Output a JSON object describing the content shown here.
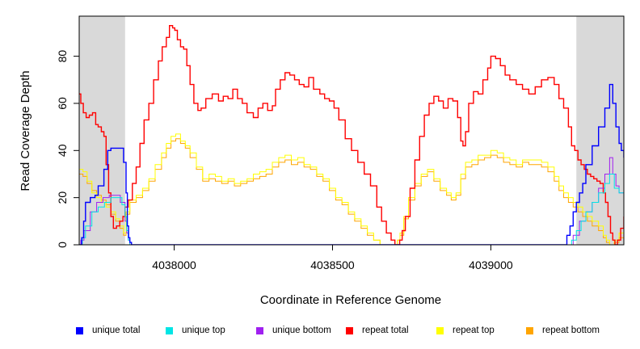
{
  "chart_data": {
    "type": "line",
    "xlabel": "Coordinate in Reference Genome",
    "ylabel": "Read Coverage Depth",
    "xlim": [
      4037700,
      4039420
    ],
    "ylim": [
      0,
      97
    ],
    "x_ticks": [
      4038000,
      4038500,
      4039000
    ],
    "x_tick_labels": [
      "4038000",
      "4038500",
      "4039000"
    ],
    "y_ticks": [
      0,
      20,
      40,
      60,
      80
    ],
    "y_tick_labels": [
      "0",
      "20",
      "40",
      "60",
      "80"
    ],
    "grid": false,
    "legend_position": "bottom",
    "shaded_regions": [
      {
        "x": [
          4037700,
          4037845
        ],
        "color": "#d9d9d9"
      },
      {
        "x": [
          4039270,
          4039420
        ],
        "color": "#d9d9d9"
      }
    ],
    "series": [
      {
        "name": "unique total",
        "color": "#0000ff",
        "x": [
          4037700,
          4037708,
          4037714,
          4037720,
          4037735,
          4037750,
          4037760,
          4037778,
          4037790,
          4037800,
          4037815,
          4037830,
          4037840,
          4037848,
          4037852,
          4037856,
          4037860,
          4037865,
          4037870,
          4039200,
          4039230,
          4039240,
          4039250,
          4039260,
          4039270,
          4039280,
          4039290,
          4039300,
          4039320,
          4039340,
          4039360,
          4039375,
          4039385,
          4039395,
          4039405,
          4039412,
          4039420
        ],
        "y": [
          0,
          3,
          10,
          18,
          20,
          21,
          25,
          32,
          40,
          41,
          41,
          41,
          35,
          22,
          8,
          3,
          1,
          0,
          0,
          0,
          0,
          4,
          8,
          14,
          18,
          22,
          26,
          34,
          42,
          50,
          58,
          68,
          60,
          50,
          43,
          40,
          37
        ]
      },
      {
        "name": "unique top",
        "color": "#00e5e5",
        "x": [
          4037700,
          4037710,
          4037720,
          4037740,
          4037760,
          4037780,
          4037800,
          4037820,
          4037835,
          4037845,
          4037850,
          4037855,
          4037860,
          4037865,
          4037870,
          4039200,
          4039240,
          4039255,
          4039270,
          4039285,
          4039300,
          4039320,
          4039340,
          4039360,
          4039375,
          4039390,
          4039405,
          4039420
        ],
        "y": [
          0,
          3,
          8,
          14,
          16,
          18,
          20,
          20,
          17,
          12,
          6,
          2,
          0,
          0,
          0,
          0,
          0,
          2,
          6,
          10,
          14,
          18,
          22,
          26,
          30,
          24,
          22,
          20
        ]
      },
      {
        "name": "unique bottom",
        "color": "#a020f0",
        "x": [
          4037700,
          4037705,
          4037715,
          4037735,
          4037755,
          4037775,
          4037795,
          4037815,
          4037830,
          4037845,
          4037850,
          4037855,
          4037860,
          4037865,
          4037870,
          4039200,
          4039245,
          4039260,
          4039280,
          4039300,
          4039320,
          4039340,
          4039360,
          4039375,
          4039385,
          4039395,
          4039405,
          4039420
        ],
        "y": [
          0,
          2,
          6,
          14,
          18,
          20,
          21,
          21,
          18,
          10,
          5,
          2,
          0,
          0,
          0,
          0,
          0,
          4,
          10,
          14,
          18,
          24,
          30,
          37,
          30,
          25,
          22,
          20
        ]
      },
      {
        "name": "repeat total",
        "color": "#ff0000",
        "x": [
          4037700,
          4037705,
          4037713,
          4037722,
          4037732,
          4037742,
          4037752,
          4037760,
          4037770,
          4037778,
          4037785,
          4037793,
          4037800,
          4037808,
          4037818,
          4037828,
          4037838,
          4037845,
          4037855,
          4037868,
          4037880,
          4037892,
          4037905,
          4037920,
          4037935,
          4037950,
          4037962,
          4037975,
          4037985,
          4037995,
          4038002,
          4038010,
          4038020,
          4038030,
          4038040,
          4038050,
          4038062,
          4038075,
          4038085,
          4038100,
          4038120,
          4038140,
          4038155,
          4038170,
          4038185,
          4038200,
          4038215,
          4038230,
          4038250,
          4038265,
          4038280,
          4038295,
          4038310,
          4038320,
          4038335,
          4038350,
          4038365,
          4038380,
          4038395,
          4038410,
          4038425,
          4038440,
          4038460,
          4038475,
          4038490,
          4038505,
          4038520,
          4038540,
          4038560,
          4038580,
          4038600,
          4038620,
          4038640,
          4038655,
          4038670,
          4038685,
          4038697,
          4038705,
          4038712,
          4038720,
          4038730,
          4038745,
          4038760,
          4038775,
          4038790,
          4038805,
          4038820,
          4038835,
          4038850,
          4038865,
          4038880,
          4038895,
          4038905,
          4038912,
          4038920,
          4038930,
          4038945,
          4038960,
          4038975,
          4038990,
          4039000,
          4039015,
          4039030,
          4039045,
          4039060,
          4039080,
          4039100,
          4039120,
          4039140,
          4039160,
          4039180,
          4039200,
          4039215,
          4039230,
          4039245,
          4039255,
          4039265,
          4039275,
          4039285,
          4039295,
          4039305,
          4039315,
          4039325,
          4039335,
          4039345,
          4039355,
          4039362,
          4039370,
          4039378,
          4039385,
          4039392,
          4039400,
          4039410,
          4039420
        ],
        "y": [
          64,
          60,
          56,
          54,
          55,
          56,
          51,
          50,
          48,
          46,
          34,
          22,
          12,
          7,
          8,
          10,
          12,
          16,
          19,
          26,
          33,
          43,
          53,
          60,
          70,
          78,
          84,
          88,
          93,
          92,
          91,
          87,
          84,
          83,
          76,
          68,
          60,
          57,
          58,
          62,
          64,
          61,
          63,
          62,
          66,
          62,
          60,
          56,
          54,
          58,
          60,
          57,
          59,
          66,
          70,
          73,
          72,
          70,
          68,
          67,
          71,
          66,
          64,
          62,
          61,
          58,
          53,
          45,
          40,
          35,
          30,
          25,
          16,
          10,
          5,
          2,
          0,
          0,
          2,
          6,
          12,
          24,
          36,
          46,
          55,
          60,
          63,
          61,
          58,
          62,
          61,
          54,
          44,
          42,
          48,
          60,
          65,
          64,
          70,
          75,
          80,
          79,
          76,
          72,
          70,
          68,
          66,
          64,
          67,
          70,
          71,
          68,
          62,
          58,
          50,
          42,
          40,
          36,
          34,
          32,
          30,
          29,
          28,
          27,
          26,
          22,
          18,
          12,
          5,
          2,
          0,
          2,
          7,
          12
        ]
      },
      {
        "name": "repeat top",
        "color": "#ffff00",
        "x": [
          4037700,
          4037712,
          4037725,
          4037740,
          4037755,
          4037770,
          4037785,
          4037800,
          4037815,
          4037828,
          4037840,
          4037848,
          4037860,
          4037880,
          4037900,
          4037920,
          4037940,
          4037960,
          4037975,
          4037990,
          4038005,
          4038020,
          4038035,
          4038050,
          4038070,
          4038090,
          4038110,
          4038130,
          4038150,
          4038170,
          4038190,
          4038210,
          4038230,
          4038250,
          4038270,
          4038290,
          4038310,
          4038330,
          4038350,
          4038370,
          4038390,
          4038410,
          4038430,
          4038450,
          4038470,
          4038490,
          4038510,
          4038530,
          4038550,
          4038570,
          4038590,
          4038610,
          4038630,
          4038650,
          4038670,
          4038685,
          4038697,
          4038705,
          4038713,
          4038725,
          4038740,
          4038760,
          4038780,
          4038800,
          4038820,
          4038840,
          4038860,
          4038875,
          4038890,
          4038905,
          4038920,
          4038940,
          4038960,
          4038980,
          4039000,
          4039020,
          4039040,
          4039060,
          4039080,
          4039100,
          4039120,
          4039140,
          4039160,
          4039180,
          4039200,
          4039215,
          4039230,
          4039245,
          4039260,
          4039275,
          4039290,
          4039305,
          4039320,
          4039340,
          4039355,
          4039365,
          4039375,
          4039390,
          4039405,
          4039420
        ],
        "y": [
          32,
          31,
          27,
          22,
          20,
          18,
          16,
          14,
          11,
          8,
          5,
          14,
          19,
          21,
          24,
          28,
          34,
          39,
          43,
          46,
          47,
          44,
          42,
          39,
          33,
          28,
          30,
          29,
          27,
          28,
          26,
          27,
          28,
          30,
          31,
          32,
          35,
          37,
          38,
          36,
          37,
          34,
          33,
          30,
          28,
          24,
          20,
          18,
          14,
          11,
          8,
          5,
          2,
          0,
          0,
          0,
          0,
          2,
          5,
          12,
          20,
          26,
          30,
          32,
          28,
          24,
          22,
          20,
          22,
          30,
          35,
          36,
          38,
          38,
          40,
          39,
          37,
          36,
          34,
          36,
          36,
          36,
          35,
          33,
          29,
          25,
          22,
          20,
          18,
          16,
          14,
          12,
          10,
          8,
          4,
          2,
          0,
          2,
          5,
          7
        ]
      },
      {
        "name": "repeat bottom",
        "color": "#ffa500",
        "x": [
          4037700,
          4037712,
          4037725,
          4037740,
          4037755,
          4037770,
          4037785,
          4037800,
          4037815,
          4037828,
          4037840,
          4037848,
          4037860,
          4037880,
          4037900,
          4037920,
          4037940,
          4037960,
          4037975,
          4037990,
          4038005,
          4038020,
          4038035,
          4038050,
          4038070,
          4038090,
          4038110,
          4038130,
          4038150,
          4038170,
          4038190,
          4038210,
          4038230,
          4038250,
          4038270,
          4038290,
          4038310,
          4038330,
          4038350,
          4038370,
          4038390,
          4038410,
          4038430,
          4038450,
          4038470,
          4038490,
          4038510,
          4038530,
          4038550,
          4038570,
          4038590,
          4038610,
          4038630,
          4038650,
          4038670,
          4038685,
          4038697,
          4038705,
          4038713,
          4038725,
          4038740,
          4038760,
          4038780,
          4038800,
          4038820,
          4038840,
          4038860,
          4038875,
          4038890,
          4038905,
          4038920,
          4038940,
          4038960,
          4038980,
          4039000,
          4039020,
          4039040,
          4039060,
          4039080,
          4039100,
          4039120,
          4039140,
          4039160,
          4039180,
          4039200,
          4039215,
          4039230,
          4039245,
          4039260,
          4039275,
          4039290,
          4039305,
          4039320,
          4039340,
          4039355,
          4039365,
          4039375,
          4039390,
          4039405,
          4039420
        ],
        "y": [
          30,
          29,
          26,
          23,
          21,
          19,
          17,
          13,
          10,
          7,
          4,
          13,
          18,
          20,
          23,
          27,
          32,
          37,
          41,
          44,
          45,
          43,
          41,
          37,
          32,
          27,
          28,
          27,
          26,
          27,
          25,
          26,
          27,
          28,
          29,
          30,
          33,
          35,
          36,
          34,
          35,
          33,
          32,
          29,
          27,
          23,
          19,
          17,
          13,
          10,
          7,
          4,
          2,
          0,
          0,
          0,
          0,
          2,
          4,
          11,
          19,
          25,
          29,
          31,
          27,
          23,
          21,
          19,
          21,
          28,
          33,
          34,
          36,
          37,
          38,
          37,
          35,
          34,
          33,
          35,
          34,
          34,
          33,
          31,
          27,
          23,
          20,
          18,
          16,
          14,
          12,
          10,
          8,
          6,
          3,
          1,
          0,
          1,
          3,
          5
        ]
      }
    ]
  }
}
